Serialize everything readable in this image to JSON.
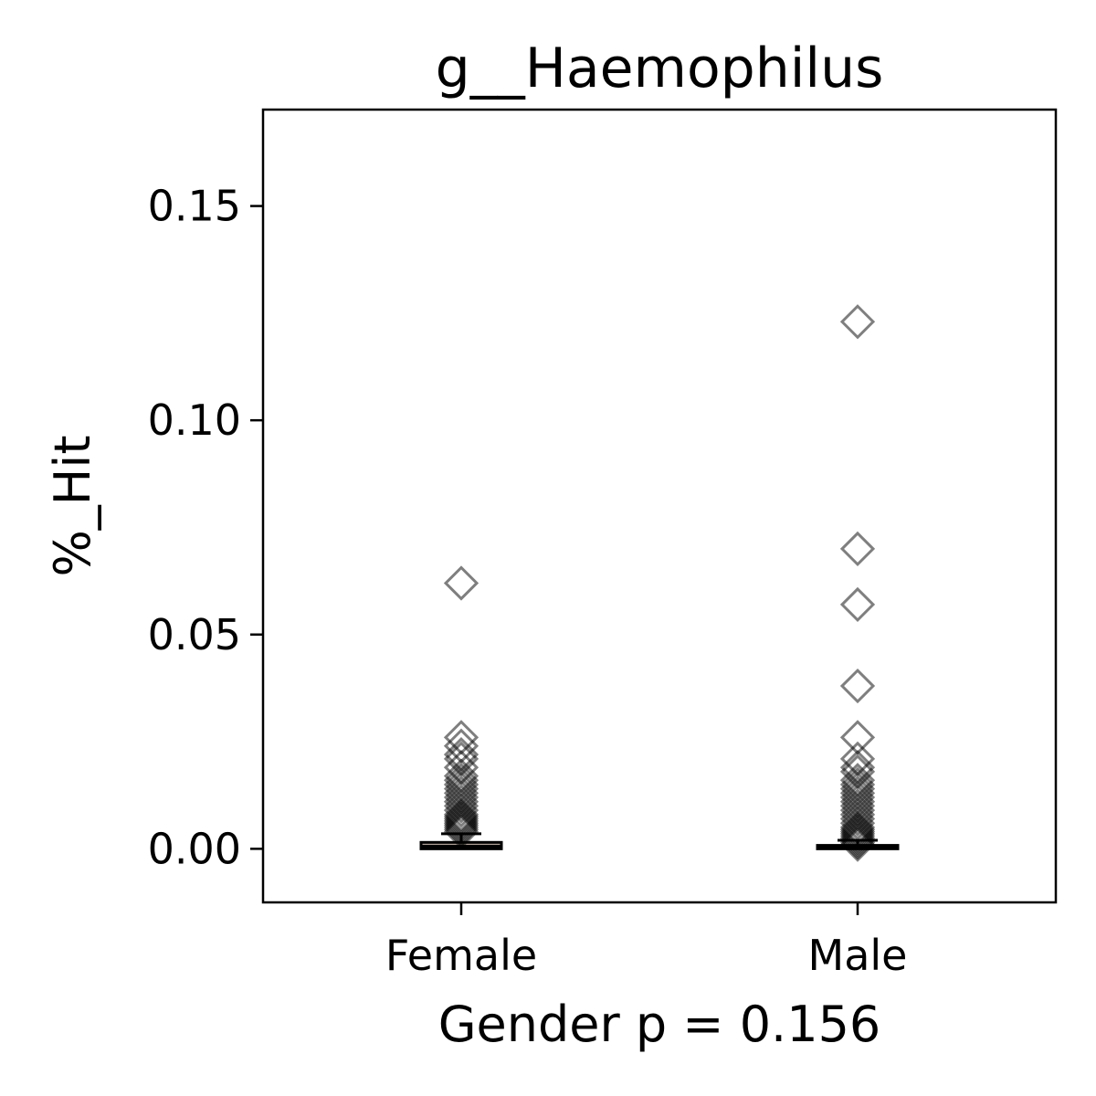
{
  "chart_data": {
    "type": "box",
    "title": "g__Haemophilus",
    "xlabel": "Gender p = 0.156",
    "ylabel": "%_Hit",
    "categories": [
      "Female",
      "Male"
    ],
    "ylim": [
      -0.0125,
      0.1725
    ],
    "yticks": [
      0.0,
      0.05,
      0.1,
      0.15
    ],
    "ytick_labels": [
      "0.00",
      "0.05",
      "0.10",
      "0.15"
    ],
    "grid": false,
    "series": [
      {
        "category": "Female",
        "box": {
          "q1": 0.0,
          "median": 0.0005,
          "q3": 0.0015,
          "whisker_low": 0.0,
          "whisker_high": 0.0035
        },
        "points": [
          0.062,
          0.026,
          0.024,
          0.022,
          0.021,
          0.019,
          0.017,
          0.016,
          0.015,
          0.014,
          0.013,
          0.012,
          0.011,
          0.01,
          0.009,
          0.008,
          0.0075,
          0.007,
          0.0065,
          0.006,
          0.0055,
          0.005,
          0.0045,
          0.004
        ]
      },
      {
        "category": "Male",
        "box": {
          "q1": 0.0,
          "median": 0.0003,
          "q3": 0.0008,
          "whisker_low": 0.0,
          "whisker_high": 0.002
        },
        "points": [
          0.123,
          0.07,
          0.057,
          0.038,
          0.026,
          0.021,
          0.019,
          0.018,
          0.016,
          0.015,
          0.014,
          0.013,
          0.012,
          0.011,
          0.01,
          0.009,
          0.008,
          0.007,
          0.006,
          0.005,
          0.0045,
          0.004,
          0.0035,
          0.003,
          0.0025,
          0.002,
          0.0015,
          0.001
        ]
      }
    ],
    "marker": "diamond-open",
    "colors": {
      "box_fill": "#b0a39a",
      "marker": "#000000",
      "frame": "#000000"
    }
  }
}
